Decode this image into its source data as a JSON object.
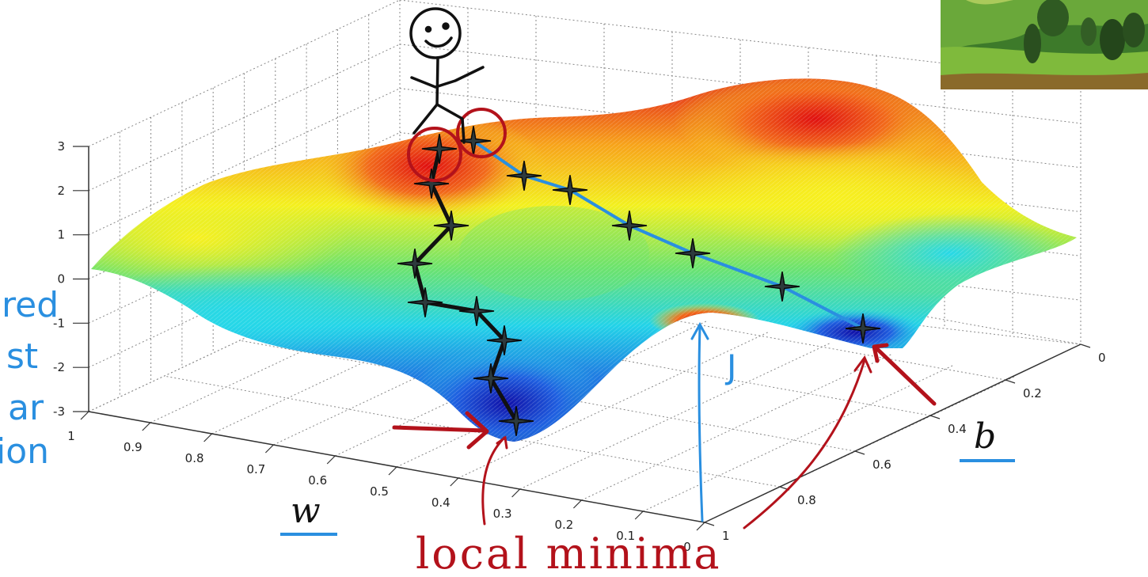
{
  "chart_data": {
    "type": "surface",
    "title": "",
    "axes": {
      "z": {
        "ticks": [
          "3",
          "2",
          "1",
          "0",
          "-1",
          "-2",
          "-3"
        ]
      },
      "w": {
        "label": "w",
        "ticks": [
          "1",
          "0.9",
          "0.8",
          "0.7",
          "0.6",
          "0.5",
          "0.4",
          "0.3",
          "0.2",
          "0.1",
          "0"
        ]
      },
      "b": {
        "label": "b",
        "ticks": [
          "0",
          "0.2",
          "0.4",
          "0.6",
          "0.8",
          "1"
        ]
      }
    },
    "grid": true,
    "colormap": [
      "#1b1bb4",
      "#1f6fe0",
      "#22d3e8",
      "#6de36d",
      "#f3f01e",
      "#f7a21a",
      "#e21b1b"
    ]
  },
  "annotations": {
    "j_label": "J",
    "local_minima": "local minima",
    "left_cut_text": [
      "red",
      "st",
      "ar",
      "ion"
    ]
  },
  "colors": {
    "black_path": "#111111",
    "blue_path": "#2a8fe0",
    "annotation_red": "#b3121b"
  },
  "thumbnail": {
    "icon": "landscape-thumbnail-icon"
  }
}
